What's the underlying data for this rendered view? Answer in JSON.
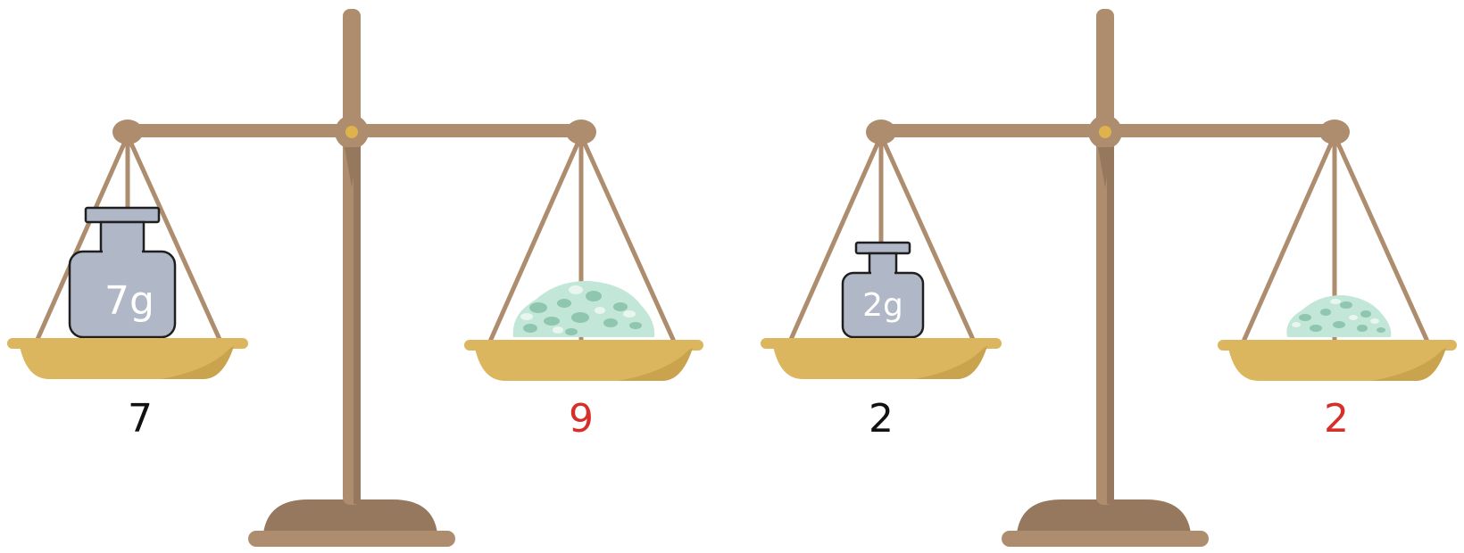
{
  "colors": {
    "wood": "#ae8c6e",
    "wood_dark": "#96785f",
    "pan": "#dbb65e",
    "pan_shadow": "#c9a34d",
    "pivot": "#e0b24b",
    "weight": "#b0b7c6",
    "weight_stroke": "#1f1f1f",
    "pile": "#c2e6d7",
    "pile_dots": "#8fc6b0",
    "label_default": "#111111",
    "label_accent": "#d62f2a"
  },
  "scales": [
    {
      "left_weight_label": "7g",
      "left_value": "7",
      "right_value": "9"
    },
    {
      "left_weight_label": "2g",
      "left_value": "2",
      "right_value": "2"
    }
  ]
}
